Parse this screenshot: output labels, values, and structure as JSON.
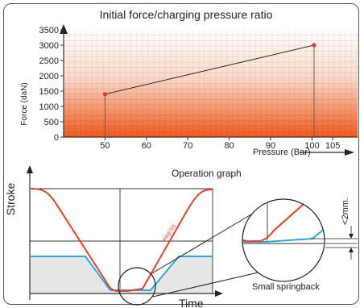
{
  "chart_data": [
    {
      "type": "line",
      "title": "Initial force/charging pressure ratio",
      "xlabel": "Pressure (Bar)",
      "ylabel": "Force (daN)",
      "x_ticks": [
        50,
        60,
        70,
        80,
        90,
        100,
        105
      ],
      "y_ticks": [
        0,
        500,
        1000,
        1500,
        2000,
        2500,
        3000,
        3500
      ],
      "xlim": [
        40,
        111
      ],
      "ylim": [
        0,
        3500
      ],
      "series": [
        {
          "x": [
            50,
            100.5
          ],
          "y": [
            1400,
            3000
          ]
        }
      ],
      "grid": true,
      "colors": {
        "line": "#222222",
        "point": "#e8303a",
        "gradient_bottom": "#f05a1e"
      }
    }
  ],
  "operation": {
    "title": "Operation graph",
    "y_label": "Stroke",
    "x_label": "Time",
    "curve_label": "PRESS",
    "detail_caption": "Small springback",
    "dimension_label": "<2mm.",
    "colors": {
      "press": "#e8402a",
      "blue": "#29a9df",
      "fill": "#e6e6e6"
    }
  }
}
